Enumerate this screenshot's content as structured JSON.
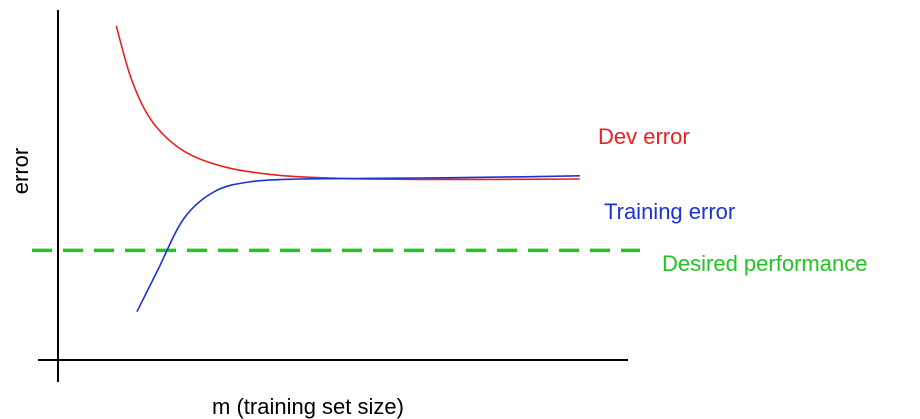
{
  "chart_data": {
    "type": "line",
    "title": "",
    "xlabel": "m (training set size)",
    "ylabel": "error",
    "grid": false,
    "xlim": [
      0,
      100
    ],
    "ylim": [
      0,
      100
    ],
    "series": [
      {
        "name": "Dev error",
        "color": "#e8231f",
        "x": [
          7,
          10,
          14,
          20,
          28,
          38,
          50,
          65,
          80,
          96
        ],
        "y": [
          98,
          81,
          68,
          59,
          54,
          51.5,
          50.5,
          50.2,
          50.2,
          50.3
        ]
      },
      {
        "name": "Training error",
        "color": "#1c33d4",
        "x": [
          11,
          15,
          20,
          26,
          33,
          42,
          55,
          70,
          85,
          96
        ],
        "y": [
          9,
          22,
          38,
          46.5,
          49.5,
          50.3,
          50.5,
          50.7,
          51,
          51.3
        ]
      }
    ],
    "reference_lines": [
      {
        "name": "Desired performance",
        "color": "#22c522",
        "orientation": "horizontal",
        "y": 28,
        "style": "dashed"
      }
    ]
  }
}
